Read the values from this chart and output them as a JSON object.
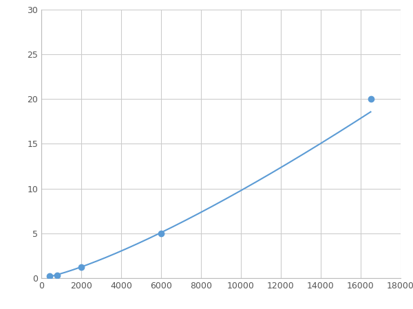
{
  "x": [
    400,
    800,
    2000,
    6000,
    16500
  ],
  "y": [
    0.2,
    0.3,
    1.2,
    5.0,
    20.0
  ],
  "line_color": "#5b9bd5",
  "marker_color": "#5b9bd5",
  "marker_size": 6,
  "line_width": 1.5,
  "xlim": [
    0,
    18000
  ],
  "ylim": [
    0,
    30
  ],
  "xticks": [
    0,
    2000,
    4000,
    6000,
    8000,
    10000,
    12000,
    14000,
    16000,
    18000
  ],
  "yticks": [
    0,
    5,
    10,
    15,
    20,
    25,
    30
  ],
  "grid_color": "#cccccc",
  "background_color": "#ffffff",
  "figsize": [
    6.0,
    4.5
  ],
  "dpi": 100
}
